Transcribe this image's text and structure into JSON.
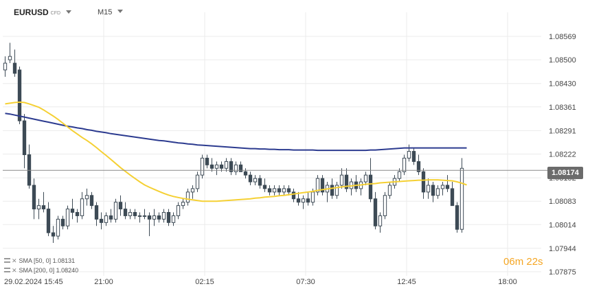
{
  "header": {
    "symbol": "EURUSD",
    "symbol_tag": "CFD",
    "timeframe": "M15"
  },
  "indicators": [
    {
      "label": "SMA [50, 0]",
      "value": "1.08131",
      "color": "#f5d033"
    },
    {
      "label": "SMA [200, 0]",
      "value": "1.08240",
      "color": "#2b3a8f"
    }
  ],
  "countdown": {
    "minutes": "06",
    "m": "m",
    "seconds": "22",
    "s": "s"
  },
  "current_price": "1.08174",
  "colors": {
    "bull": "#ffffff",
    "bear": "#3d4a55",
    "sma50": "#f5d033",
    "sma200": "#2b3a8f",
    "grid": "#ebebeb",
    "price_line": "#888888"
  },
  "chart_data": {
    "type": "candlestick",
    "y_ticks": [
      "1.08569",
      "1.08500",
      "1.08430",
      "1.08361",
      "1.08291",
      "1.08222",
      "1.08152",
      "1.08083",
      "1.08014",
      "1.07944",
      "1.07875"
    ],
    "ylim": [
      1.07875,
      1.08569
    ],
    "x_ticks": [
      "29.02.2024  15:45",
      "21:00",
      "02:15",
      "07:30",
      "12:45",
      "18:00"
    ],
    "x_range_bars": [
      0,
      112
    ],
    "x_tick_bars": [
      0,
      21,
      42,
      63,
      84,
      105
    ],
    "candles": [
      [
        1.0847,
        1.0851,
        1.0845,
        1.0849
      ],
      [
        1.085,
        1.0855,
        1.0849,
        1.0851
      ],
      [
        1.0849,
        1.0853,
        1.0845,
        1.0846
      ],
      [
        1.0847,
        1.0848,
        1.0831,
        1.0832
      ],
      [
        1.0832,
        1.0834,
        1.0818,
        1.0822
      ],
      [
        1.0822,
        1.0825,
        1.0812,
        1.0813
      ],
      [
        1.0813,
        1.0815,
        1.0803,
        1.0806
      ],
      [
        1.0806,
        1.0809,
        1.0803,
        1.0807
      ],
      [
        1.0807,
        1.0811,
        1.0805,
        1.0806
      ],
      [
        1.0806,
        1.0808,
        1.0798,
        1.0799
      ],
      [
        1.0799,
        1.0801,
        1.0796,
        1.0798
      ],
      [
        1.0798,
        1.0804,
        1.0797,
        1.0803
      ],
      [
        1.0803,
        1.0804,
        1.08,
        1.0801
      ],
      [
        1.0801,
        1.0807,
        1.08,
        1.0806
      ],
      [
        1.0806,
        1.0809,
        1.0803,
        1.0805
      ],
      [
        1.0805,
        1.0806,
        1.0802,
        1.0804
      ],
      [
        1.0804,
        1.0811,
        1.0803,
        1.0809
      ],
      [
        1.0809,
        1.0812,
        1.0807,
        1.081
      ],
      [
        1.081,
        1.0811,
        1.0806,
        1.0807
      ],
      [
        1.0807,
        1.0808,
        1.0801,
        1.0803
      ],
      [
        1.0803,
        1.0805,
        1.08,
        1.0802
      ],
      [
        1.0802,
        1.0805,
        1.0801,
        1.0804
      ],
      [
        1.0804,
        1.0806,
        1.0802,
        1.0803
      ],
      [
        1.0803,
        1.0809,
        1.0802,
        1.0808
      ],
      [
        1.0808,
        1.081,
        1.0804,
        1.0806
      ],
      [
        1.0806,
        1.0808,
        1.0803,
        1.0804
      ],
      [
        1.0804,
        1.0806,
        1.0803,
        1.0805
      ],
      [
        1.0805,
        1.0806,
        1.0803,
        1.0804
      ],
      [
        1.0804,
        1.0805,
        1.0802,
        1.0804
      ],
      [
        1.0804,
        1.0806,
        1.0803,
        1.0804
      ],
      [
        1.0804,
        1.0805,
        1.0798,
        1.0803
      ],
      [
        1.0803,
        1.0806,
        1.0801,
        1.0804
      ],
      [
        1.0804,
        1.0805,
        1.0802,
        1.0803
      ],
      [
        1.0803,
        1.0806,
        1.0802,
        1.0805
      ],
      [
        1.0805,
        1.0806,
        1.0801,
        1.0802
      ],
      [
        1.0802,
        1.0805,
        1.0801,
        1.0804
      ],
      [
        1.0804,
        1.0808,
        1.0803,
        1.0807
      ],
      [
        1.0807,
        1.0809,
        1.0806,
        1.0808
      ],
      [
        1.0808,
        1.0812,
        1.0807,
        1.0811
      ],
      [
        1.0811,
        1.0813,
        1.0809,
        1.0812
      ],
      [
        1.0812,
        1.0817,
        1.0811,
        1.0816
      ],
      [
        1.0816,
        1.0822,
        1.0815,
        1.0821
      ],
      [
        1.0821,
        1.0822,
        1.0818,
        1.0819
      ],
      [
        1.0819,
        1.0821,
        1.0817,
        1.0818
      ],
      [
        1.0818,
        1.082,
        1.0816,
        1.0819
      ],
      [
        1.0819,
        1.082,
        1.0817,
        1.0818
      ],
      [
        1.0818,
        1.0821,
        1.0817,
        1.082
      ],
      [
        1.082,
        1.0821,
        1.0816,
        1.0817
      ],
      [
        1.0817,
        1.082,
        1.0816,
        1.0819
      ],
      [
        1.0819,
        1.082,
        1.0817,
        1.0817
      ],
      [
        1.0817,
        1.0818,
        1.0815,
        1.0816
      ],
      [
        1.0816,
        1.0817,
        1.0813,
        1.0814
      ],
      [
        1.0814,
        1.0816,
        1.0813,
        1.0815
      ],
      [
        1.0815,
        1.0816,
        1.0812,
        1.0813
      ],
      [
        1.0813,
        1.0815,
        1.0811,
        1.0812
      ],
      [
        1.0812,
        1.0813,
        1.081,
        1.0811
      ],
      [
        1.0811,
        1.0813,
        1.081,
        1.0812
      ],
      [
        1.0812,
        1.0813,
        1.081,
        1.0811
      ],
      [
        1.0811,
        1.0813,
        1.081,
        1.0812
      ],
      [
        1.0812,
        1.0813,
        1.081,
        1.0811
      ],
      [
        1.0811,
        1.0812,
        1.0808,
        1.0809
      ],
      [
        1.0809,
        1.0811,
        1.0807,
        1.0808
      ],
      [
        1.0808,
        1.081,
        1.0806,
        1.0809
      ],
      [
        1.0809,
        1.0811,
        1.0807,
        1.0808
      ],
      [
        1.0808,
        1.0812,
        1.0807,
        1.0811
      ],
      [
        1.0811,
        1.0816,
        1.081,
        1.0815
      ],
      [
        1.0815,
        1.0816,
        1.081,
        1.0811
      ],
      [
        1.0811,
        1.0814,
        1.0808,
        1.0813
      ],
      [
        1.0813,
        1.0815,
        1.0809,
        1.081
      ],
      [
        1.081,
        1.0814,
        1.0809,
        1.0813
      ],
      [
        1.0813,
        1.0818,
        1.0812,
        1.0816
      ],
      [
        1.0816,
        1.0818,
        1.0811,
        1.0812
      ],
      [
        1.0812,
        1.0815,
        1.081,
        1.0814
      ],
      [
        1.0814,
        1.0816,
        1.0811,
        1.0812
      ],
      [
        1.0812,
        1.0815,
        1.081,
        1.0814
      ],
      [
        1.0814,
        1.0817,
        1.0813,
        1.0816
      ],
      [
        1.0816,
        1.0821,
        1.0808,
        1.0809
      ],
      [
        1.0809,
        1.0811,
        1.08,
        1.0801
      ],
      [
        1.0801,
        1.0805,
        1.0799,
        1.0804
      ],
      [
        1.0804,
        1.0811,
        1.0803,
        1.081
      ],
      [
        1.081,
        1.0814,
        1.0809,
        1.0813
      ],
      [
        1.0813,
        1.0816,
        1.0812,
        1.0815
      ],
      [
        1.0815,
        1.0818,
        1.0814,
        1.0817
      ],
      [
        1.0817,
        1.0822,
        1.0816,
        1.0821
      ],
      [
        1.0821,
        1.0825,
        1.082,
        1.0823
      ],
      [
        1.0823,
        1.0824,
        1.0819,
        1.082
      ],
      [
        1.082,
        1.0822,
        1.0816,
        1.0817
      ],
      [
        1.0817,
        1.0818,
        1.0809,
        1.0811
      ],
      [
        1.0811,
        1.0815,
        1.0809,
        1.0813
      ],
      [
        1.0813,
        1.0814,
        1.0808,
        1.081
      ],
      [
        1.081,
        1.0813,
        1.0809,
        1.0812
      ],
      [
        1.0812,
        1.0814,
        1.081,
        1.0813
      ],
      [
        1.0813,
        1.0816,
        1.0811,
        1.0812
      ],
      [
        1.0812,
        1.0814,
        1.0807,
        1.0807
      ],
      [
        1.0807,
        1.0808,
        1.0799,
        1.08
      ],
      [
        1.08,
        1.0821,
        1.0799,
        1.0818
      ]
    ],
    "sma50": [
      1.0837,
      1.08372,
      1.08374,
      1.08375,
      1.08374,
      1.0837,
      1.08365,
      1.0836,
      1.08352,
      1.08343,
      1.08334,
      1.08324,
      1.08313,
      1.08302,
      1.08291,
      1.08281,
      1.08271,
      1.08262,
      1.08252,
      1.08241,
      1.08229,
      1.08218,
      1.08206,
      1.08194,
      1.08182,
      1.08171,
      1.0816,
      1.0815,
      1.0814,
      1.08131,
      1.08124,
      1.08118,
      1.08112,
      1.08106,
      1.08101,
      1.08097,
      1.08094,
      1.08091,
      1.08089,
      1.08087,
      1.08085,
      1.08083,
      1.08083,
      1.08083,
      1.08083,
      1.08084,
      1.08085,
      1.08086,
      1.08087,
      1.08088,
      1.08089,
      1.0809,
      1.08092,
      1.08093,
      1.08095,
      1.08096,
      1.08097,
      1.08099,
      1.081,
      1.08102,
      1.08104,
      1.08106,
      1.08108,
      1.0811,
      1.08112,
      1.08115,
      1.08117,
      1.08119,
      1.08121,
      1.08123,
      1.08125,
      1.08127,
      1.08128,
      1.0813,
      1.08131,
      1.08133,
      1.08134,
      1.08135,
      1.08137,
      1.08138,
      1.08139,
      1.0814,
      1.08141,
      1.08142,
      1.08143,
      1.08144,
      1.08145,
      1.08145,
      1.08146,
      1.08146,
      1.08146,
      1.08145,
      1.08144,
      1.08143,
      1.0814,
      1.08136,
      1.08131
    ],
    "sma200": [
      1.08342,
      1.0834,
      1.08337,
      1.08334,
      1.08331,
      1.08328,
      1.08325,
      1.08322,
      1.08319,
      1.08316,
      1.08313,
      1.0831,
      1.08307,
      1.08304,
      1.08302,
      1.08299,
      1.08297,
      1.08294,
      1.08292,
      1.08289,
      1.08287,
      1.08285,
      1.08282,
      1.0828,
      1.08278,
      1.08276,
      1.08274,
      1.08272,
      1.0827,
      1.08268,
      1.08266,
      1.08264,
      1.08262,
      1.08261,
      1.08259,
      1.08257,
      1.08255,
      1.08254,
      1.08252,
      1.08251,
      1.08249,
      1.08248,
      1.08247,
      1.08246,
      1.08245,
      1.08244,
      1.08243,
      1.08242,
      1.08241,
      1.0824,
      1.08239,
      1.08238,
      1.08238,
      1.08237,
      1.08237,
      1.08236,
      1.08236,
      1.08235,
      1.08235,
      1.08235,
      1.08234,
      1.08234,
      1.08234,
      1.08234,
      1.08234,
      1.08233,
      1.08233,
      1.08233,
      1.08233,
      1.08233,
      1.08233,
      1.08233,
      1.08233,
      1.08233,
      1.08233,
      1.08233,
      1.08234,
      1.08234,
      1.08235,
      1.08236,
      1.08237,
      1.08238,
      1.08239,
      1.0824,
      1.0824,
      1.0824,
      1.0824,
      1.0824,
      1.0824,
      1.0824,
      1.0824,
      1.0824,
      1.0824,
      1.0824,
      1.0824,
      1.0824,
      1.0824
    ]
  }
}
